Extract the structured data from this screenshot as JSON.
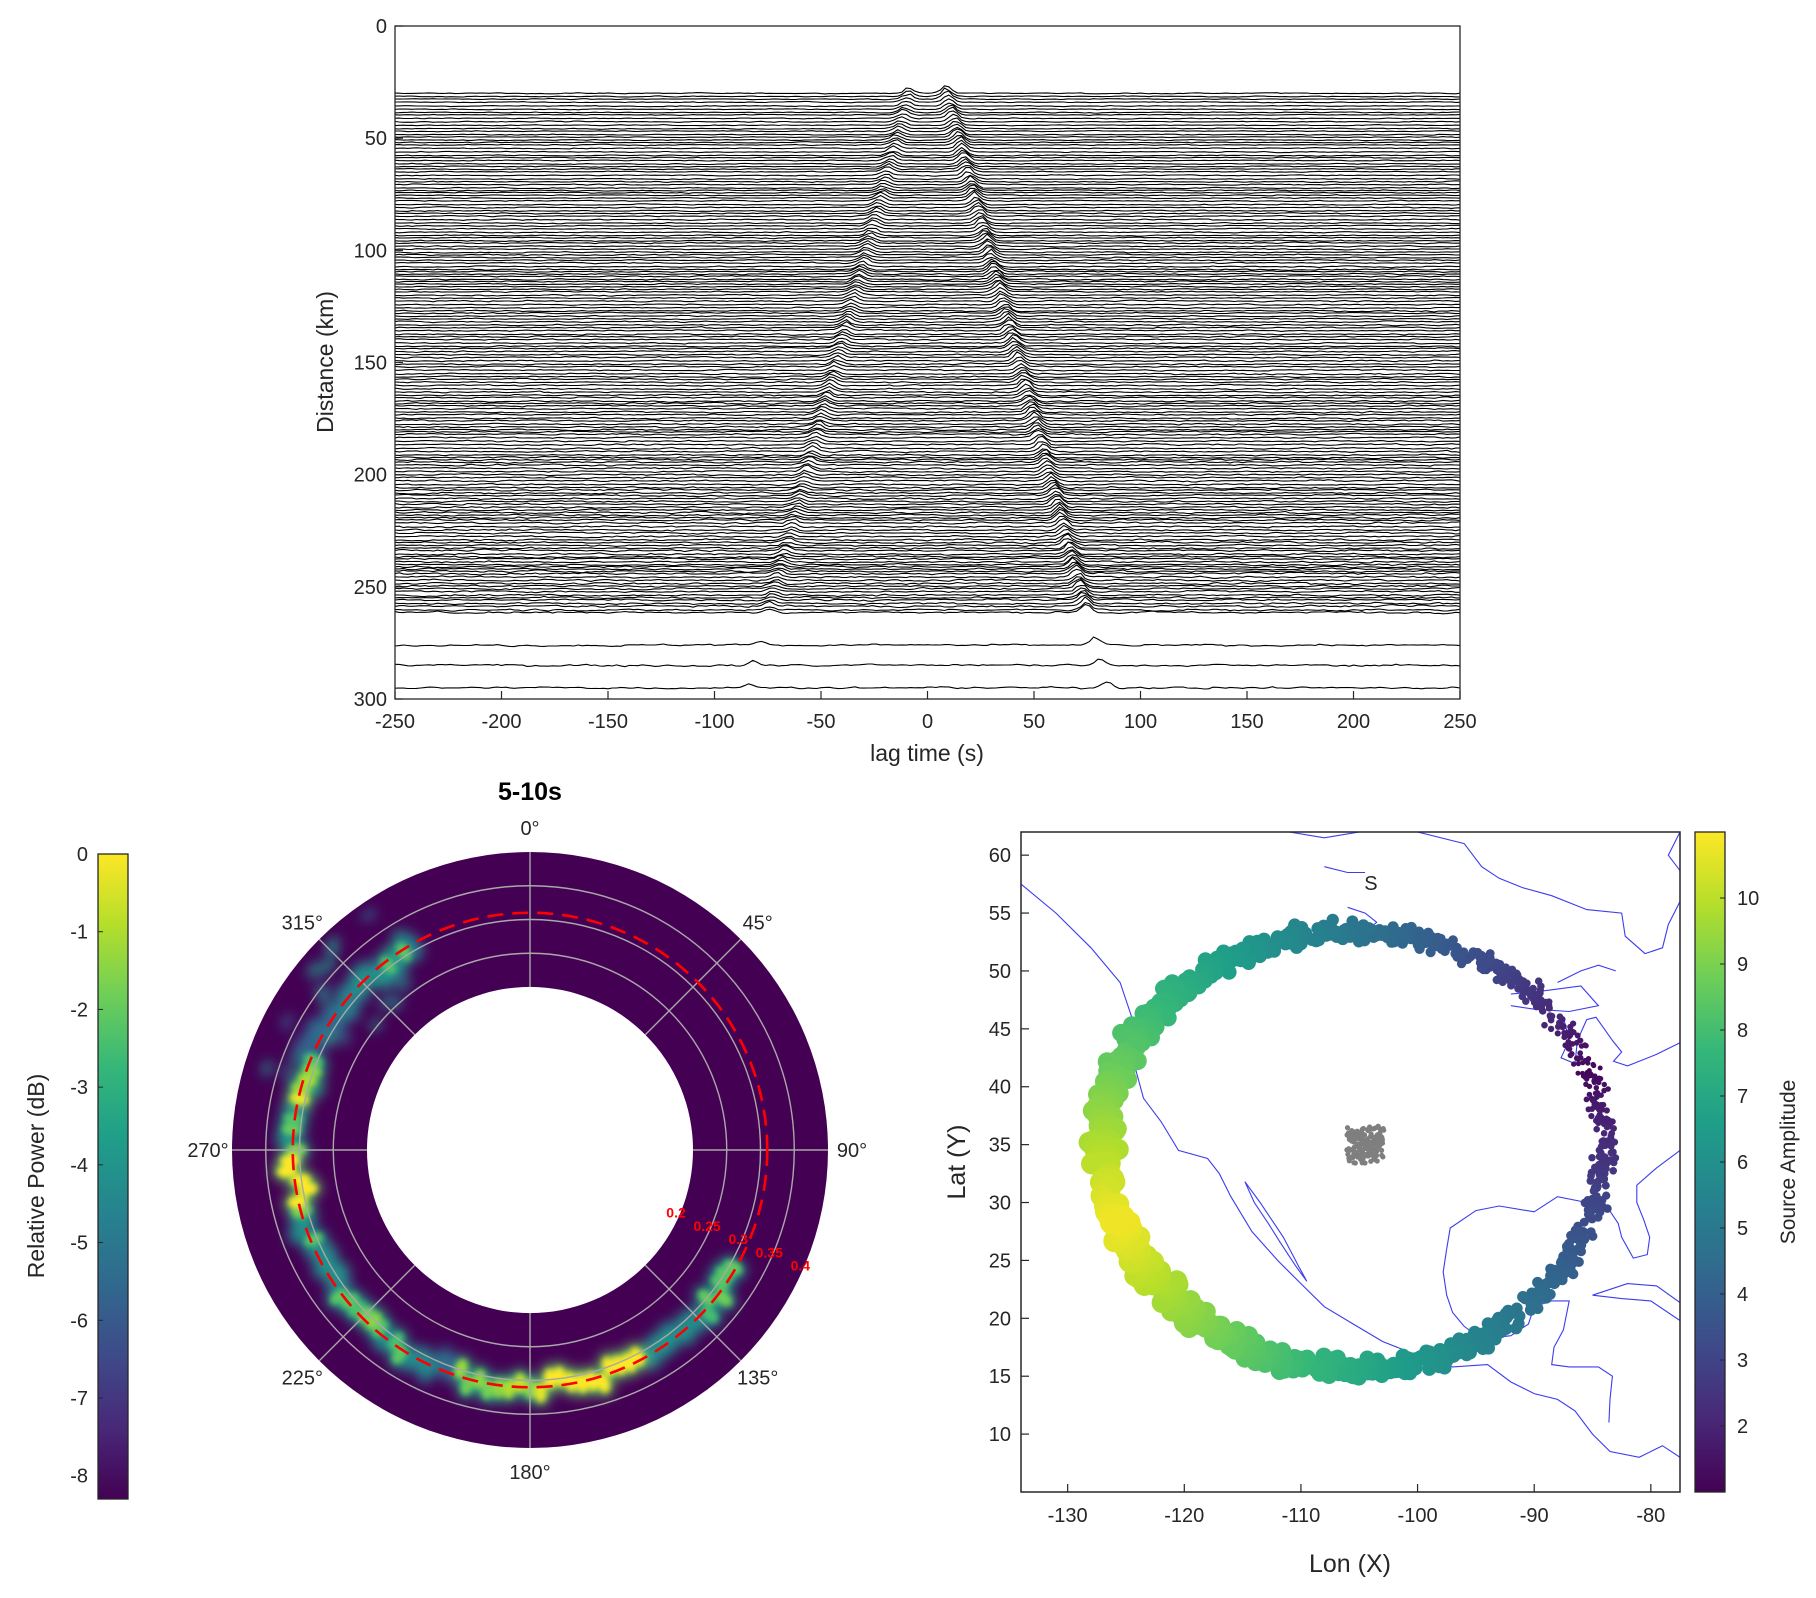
{
  "panels": {
    "record_section": {
      "chart_data": {
        "type": "line",
        "xlabel": "lag time (s)",
        "ylabel": "Distance (km)",
        "xlim": [
          -250,
          250
        ],
        "ylim": [
          0,
          300
        ],
        "y_reversed": true,
        "xticks": [
          "-250",
          "-200",
          "-150",
          "-100",
          "-50",
          "0",
          "50",
          "100",
          "150",
          "200",
          "250"
        ],
        "yticks": [
          "0",
          "50",
          "100",
          "150",
          "200",
          "250",
          "300"
        ],
        "trace_distance_range_km": [
          30,
          295
        ],
        "moveout_velocity_km_s": 3.5,
        "line_color": "#000000"
      }
    },
    "polar_beam": {
      "chart_data": {
        "type": "heatmap",
        "title": "5-10s",
        "angle_labels": [
          "0°",
          "45°",
          "90°",
          "135°",
          "180°",
          "225°",
          "270°",
          "315°"
        ],
        "radial_labels": [
          "0.2",
          "0.25",
          "0.3",
          "0.35",
          "0.4"
        ],
        "radial_range": [
          0.2,
          0.4
        ],
        "colorbar_label": "Relative Power (dB)",
        "colorbar_ticks": [
          "0",
          "-1",
          "-2",
          "-3",
          "-4",
          "-5",
          "-6",
          "-7",
          "-8"
        ],
        "clim": [
          -8.3,
          0
        ],
        "dashed_circle_radius": 0.31,
        "dashed_color": "#ff0000",
        "energy_arc_azimuth_range_deg": [
          120,
          330
        ],
        "colormap": "viridis"
      }
    },
    "source_map": {
      "chart_data": {
        "type": "scatter",
        "xlabel": "Lon (X)",
        "ylabel": "Lat (Y)",
        "xlim": [
          -134,
          -77.5
        ],
        "ylim": [
          5,
          62
        ],
        "xticks": [
          "-130",
          "-120",
          "-110",
          "-100",
          "-90",
          "-80"
        ],
        "yticks": [
          "10",
          "15",
          "20",
          "25",
          "30",
          "35",
          "40",
          "45",
          "50",
          "55",
          "60"
        ],
        "annotation": "S",
        "annotation_position": [
          -104,
          57
        ],
        "colorbar_label": "Source Amplitude",
        "colorbar_ticks": [
          "2",
          "3",
          "4",
          "5",
          "6",
          "7",
          "8",
          "9",
          "10"
        ],
        "clim": [
          1,
          11
        ],
        "source_ring": {
          "center": [
            -105.5,
            35
          ],
          "radius_lon": 21.5,
          "radius_lat": 18.5,
          "amplitude_min": 1.2,
          "amplitude_max": 10.8
        },
        "receiver_cluster": {
          "center": [
            -104.5,
            35
          ],
          "color": "#7f7f7f"
        },
        "coastline_color": "#3c3cf0",
        "colormap": "viridis"
      }
    }
  }
}
